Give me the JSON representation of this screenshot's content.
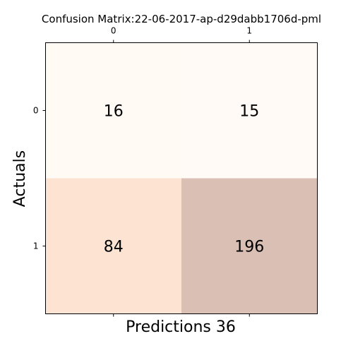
{
  "chart_data": {
    "type": "heatmap",
    "title": "Confusion Matrix:22-06-2017-ap-d29dabb1706d-pml",
    "xlabel": "Predictions 36",
    "ylabel": "Actuals",
    "x_categories": [
      "0",
      "1"
    ],
    "y_categories": [
      "0",
      "1"
    ],
    "values": [
      [
        16,
        15
      ],
      [
        84,
        196
      ]
    ],
    "colormap": "light-to-brown",
    "color_low": "#fffaf5",
    "color_high": "#d9bfb4",
    "color_mid": "#ffe6d4",
    "x_tick_position": "top-and-bottom",
    "grid": false,
    "legend": "none"
  }
}
